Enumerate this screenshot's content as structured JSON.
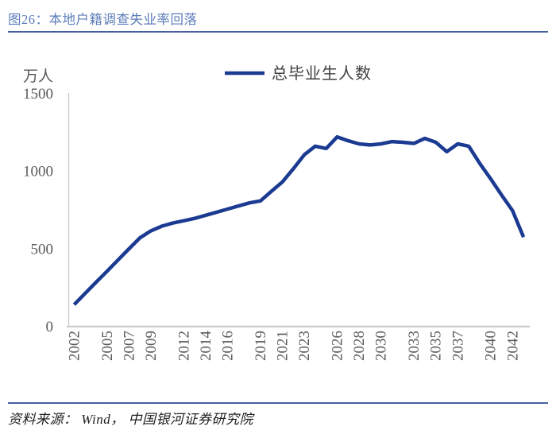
{
  "figure": {
    "title": "图26：本地户籍调查失业率回落",
    "source_note": "资料来源： Wind， 中国银河证券研究院"
  },
  "theme": {
    "title": "#5c7cba",
    "rule": "#44619e",
    "line": "#1b3a91",
    "axis": "#c8c8c8",
    "tick": "#595959",
    "legendtext": "#3f3f3f",
    "footer": "#1f1f1f"
  },
  "chart_data": {
    "type": "line",
    "title": "图26：本地户籍调查失业率回落",
    "unit_label": "万人",
    "legend_label": "总毕业生人数",
    "legend_position": "top-center",
    "grid": false,
    "ylim": [
      0,
      1500
    ],
    "y_ticks": [
      0,
      500,
      1000,
      1500
    ],
    "x_tick_labels": [
      2002,
      2005,
      2007,
      2009,
      2012,
      2014,
      2016,
      2019,
      2021,
      2023,
      2026,
      2028,
      2030,
      2033,
      2035,
      2037,
      2040,
      2042
    ],
    "x": [
      2002,
      2003,
      2004,
      2005,
      2006,
      2007,
      2008,
      2009,
      2010,
      2011,
      2012,
      2013,
      2014,
      2015,
      2016,
      2017,
      2018,
      2019,
      2020,
      2021,
      2022,
      2023,
      2024,
      2025,
      2026,
      2027,
      2028,
      2029,
      2030,
      2031,
      2032,
      2033,
      2034,
      2035,
      2036,
      2037,
      2038,
      2039,
      2040,
      2041,
      2042,
      2043
    ],
    "series": [
      {
        "name": "总毕业生人数",
        "values": [
          140,
          212,
          284,
          355,
          427,
          499,
          570,
          615,
          645,
          665,
          680,
          695,
          715,
          735,
          755,
          775,
          795,
          808,
          870,
          930,
          1015,
          1105,
          1160,
          1145,
          1220,
          1195,
          1175,
          1168,
          1175,
          1190,
          1185,
          1178,
          1210,
          1185,
          1125,
          1175,
          1160,
          1050,
          950,
          845,
          745,
          575
        ]
      }
    ]
  }
}
